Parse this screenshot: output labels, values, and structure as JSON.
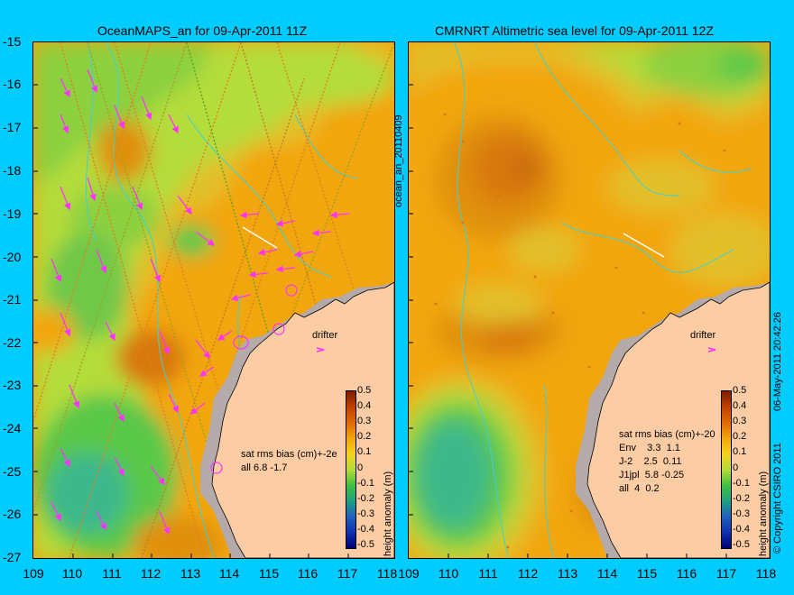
{
  "panels": [
    {
      "title": "OceanMAPS_an for 09-Apr-2011 11Z",
      "stats": [
        "sat rms bias (cm)+-2e",
        "all 6.8 -1.7"
      ]
    },
    {
      "title": "CMRNRT Altimetric sea level  for 09-Apr-2011 12Z",
      "stats": [
        "sat rms bias (cm)+-20",
        "Env    3.3  1.1",
        "J-2    2.5  0.11",
        "J1jpl  5.8 -0.25",
        "all  4  0.2"
      ]
    }
  ],
  "y_ticks": [
    "-15",
    "-16",
    "-17",
    "-18",
    "-19",
    "-20",
    "-21",
    "-22",
    "-23",
    "-24",
    "-25",
    "-26",
    "-27"
  ],
  "x_ticks": [
    "109",
    "110",
    "111",
    "112",
    "113",
    "114",
    "115",
    "116",
    "117",
    "118"
  ],
  "colorbar": {
    "label": "height anomaly (m)",
    "ticks": [
      "0.5",
      "0.4",
      "0.3",
      "0.2",
      "0.1",
      "0",
      "-0.1",
      "-0.2",
      "-0.3",
      "-0.4",
      "-0.5"
    ]
  },
  "drifter_label": "drifter",
  "side_text": {
    "middle": "ocean_an_20110409",
    "right_date": "06-May-2011 20:42:26",
    "right_copyright": "© Copyright CSIRO 2011"
  },
  "colors": {
    "background": "#00ccff",
    "land": "#fccca4",
    "coast_shallow": "#b4aaaa",
    "isobath": "#40d0d0",
    "current_arrows": "#ff33ff",
    "orange": "#f2a60c",
    "dark_orange": "#d8780a",
    "yellow_green": "#b4dc3a",
    "green": "#5ac84a",
    "sea_green": "#3cb88c"
  }
}
